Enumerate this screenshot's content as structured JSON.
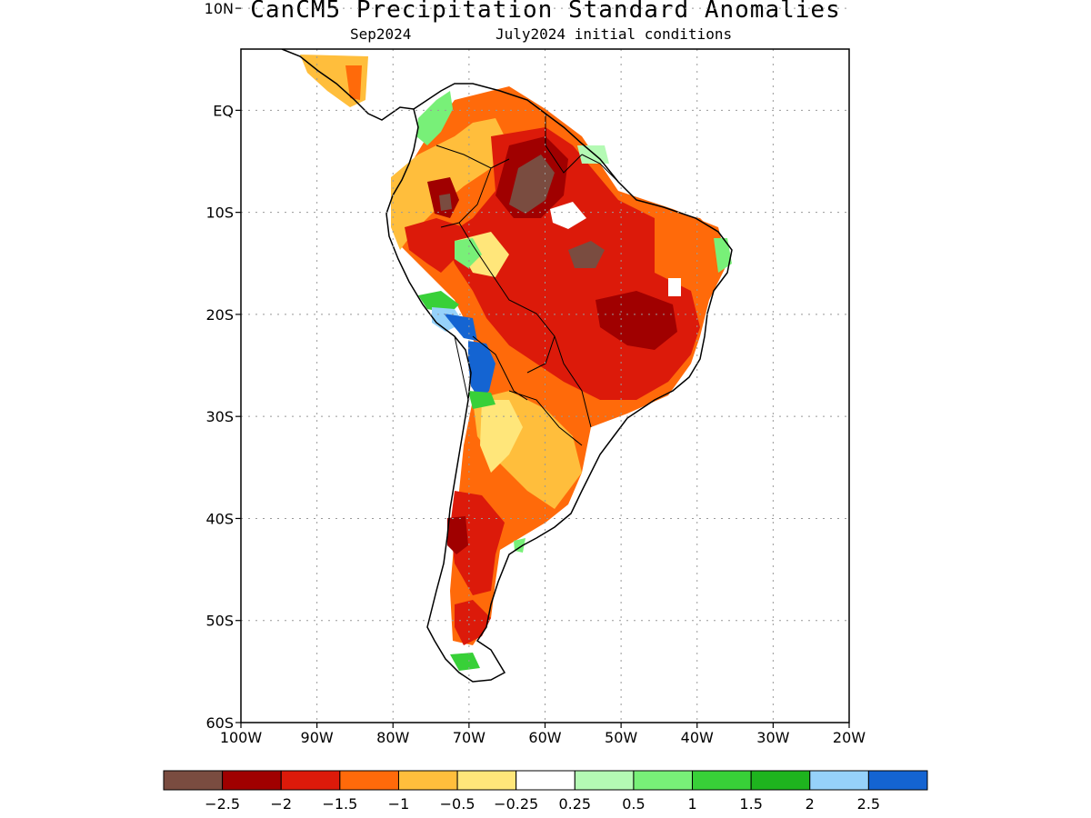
{
  "title": "CanCM5 Precipitation Standard Anomalies",
  "subtitle": {
    "target": "Sep2024",
    "initial": "July2024 initial conditions"
  },
  "map": {
    "lon_range": [
      -100,
      -20
    ],
    "lat_range": [
      -60,
      6
    ],
    "lat_ticks": [
      {
        "value": 10,
        "label": "10N"
      },
      {
        "value": 0,
        "label": "EQ"
      },
      {
        "value": -10,
        "label": "10S"
      },
      {
        "value": -20,
        "label": "20S"
      },
      {
        "value": -30,
        "label": "30S"
      },
      {
        "value": -40,
        "label": "40S"
      },
      {
        "value": -50,
        "label": "50S"
      },
      {
        "value": -60,
        "label": "60S"
      }
    ],
    "lon_ticks": [
      {
        "value": -100,
        "label": "100W"
      },
      {
        "value": -90,
        "label": "90W"
      },
      {
        "value": -80,
        "label": "80W"
      },
      {
        "value": -70,
        "label": "70W"
      },
      {
        "value": -60,
        "label": "60W"
      },
      {
        "value": -50,
        "label": "50W"
      },
      {
        "value": -40,
        "label": "40W"
      },
      {
        "value": -30,
        "label": "30W"
      },
      {
        "value": -20,
        "label": "20W"
      }
    ],
    "grid": true
  },
  "colorbar": {
    "colors": [
      "#7a4c40",
      "#a00000",
      "#dc1a0a",
      "#ff6a0a",
      "#ffbe3c",
      "#ffe67a",
      "#ffffff",
      "#b4fab4",
      "#78f078",
      "#38d038",
      "#1eb41e",
      "#96d2fa",
      "#1464d2"
    ],
    "labels": [
      "−2.5",
      "−2",
      "−1.5",
      "−1",
      "−0.5",
      "−0.25",
      "0.25",
      "0.5",
      "1",
      "1.5",
      "2",
      "2.5"
    ]
  }
}
